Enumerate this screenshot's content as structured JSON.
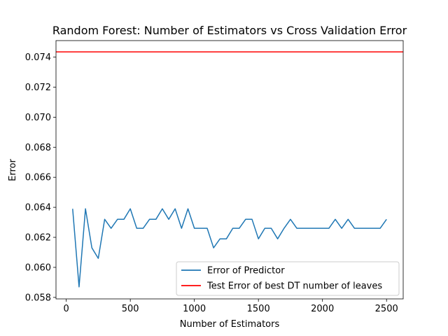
{
  "chart_data": {
    "type": "line",
    "title": "Random Forest: Number of Estimators vs Cross Validation Error",
    "xlabel": "Number of Estimators",
    "ylabel": "Error",
    "xlim": [
      -80,
      2630
    ],
    "ylim": [
      0.0579,
      0.0751
    ],
    "xticks": [
      0,
      500,
      1000,
      1500,
      2000,
      2500
    ],
    "xtick_labels": [
      "0",
      "500",
      "1000",
      "1500",
      "2000",
      "2500"
    ],
    "yticks": [
      0.058,
      0.06,
      0.062,
      0.064,
      0.066,
      0.068,
      0.07,
      0.072,
      0.074
    ],
    "ytick_labels": [
      "0.058",
      "0.060",
      "0.062",
      "0.064",
      "0.066",
      "0.068",
      "0.070",
      "0.072",
      "0.074"
    ],
    "grid": false,
    "legend_position": "lower-right",
    "series": [
      {
        "name": "Error of Predictor",
        "color": "#1f77b4",
        "x": [
          50,
          100,
          150,
          200,
          250,
          300,
          350,
          400,
          450,
          500,
          550,
          600,
          650,
          700,
          750,
          800,
          850,
          900,
          950,
          1000,
          1050,
          1100,
          1150,
          1200,
          1250,
          1300,
          1350,
          1400,
          1450,
          1500,
          1550,
          1600,
          1650,
          1700,
          1750,
          1800,
          1850,
          1900,
          1950,
          2000,
          2050,
          2100,
          2150,
          2200,
          2250,
          2300,
          2350,
          2400,
          2450,
          2500
        ],
        "y": [
          0.0639,
          0.0587,
          0.0639,
          0.0613,
          0.0606,
          0.0632,
          0.0626,
          0.0632,
          0.0632,
          0.0639,
          0.0626,
          0.0626,
          0.0632,
          0.0632,
          0.0639,
          0.0632,
          0.0639,
          0.0626,
          0.0639,
          0.0626,
          0.0626,
          0.0626,
          0.0613,
          0.0619,
          0.0619,
          0.0626,
          0.0626,
          0.0632,
          0.0632,
          0.0619,
          0.0626,
          0.0626,
          0.0619,
          0.0626,
          0.0632,
          0.0626,
          0.0626,
          0.0626,
          0.0626,
          0.0626,
          0.0626,
          0.0632,
          0.0626,
          0.0632,
          0.0626,
          0.0626,
          0.0626,
          0.0626,
          0.0626,
          0.0632
        ]
      },
      {
        "name": "Test Error of best DT number of leaves",
        "color": "#ff0000",
        "type": "hline",
        "y": 0.07435
      }
    ]
  }
}
